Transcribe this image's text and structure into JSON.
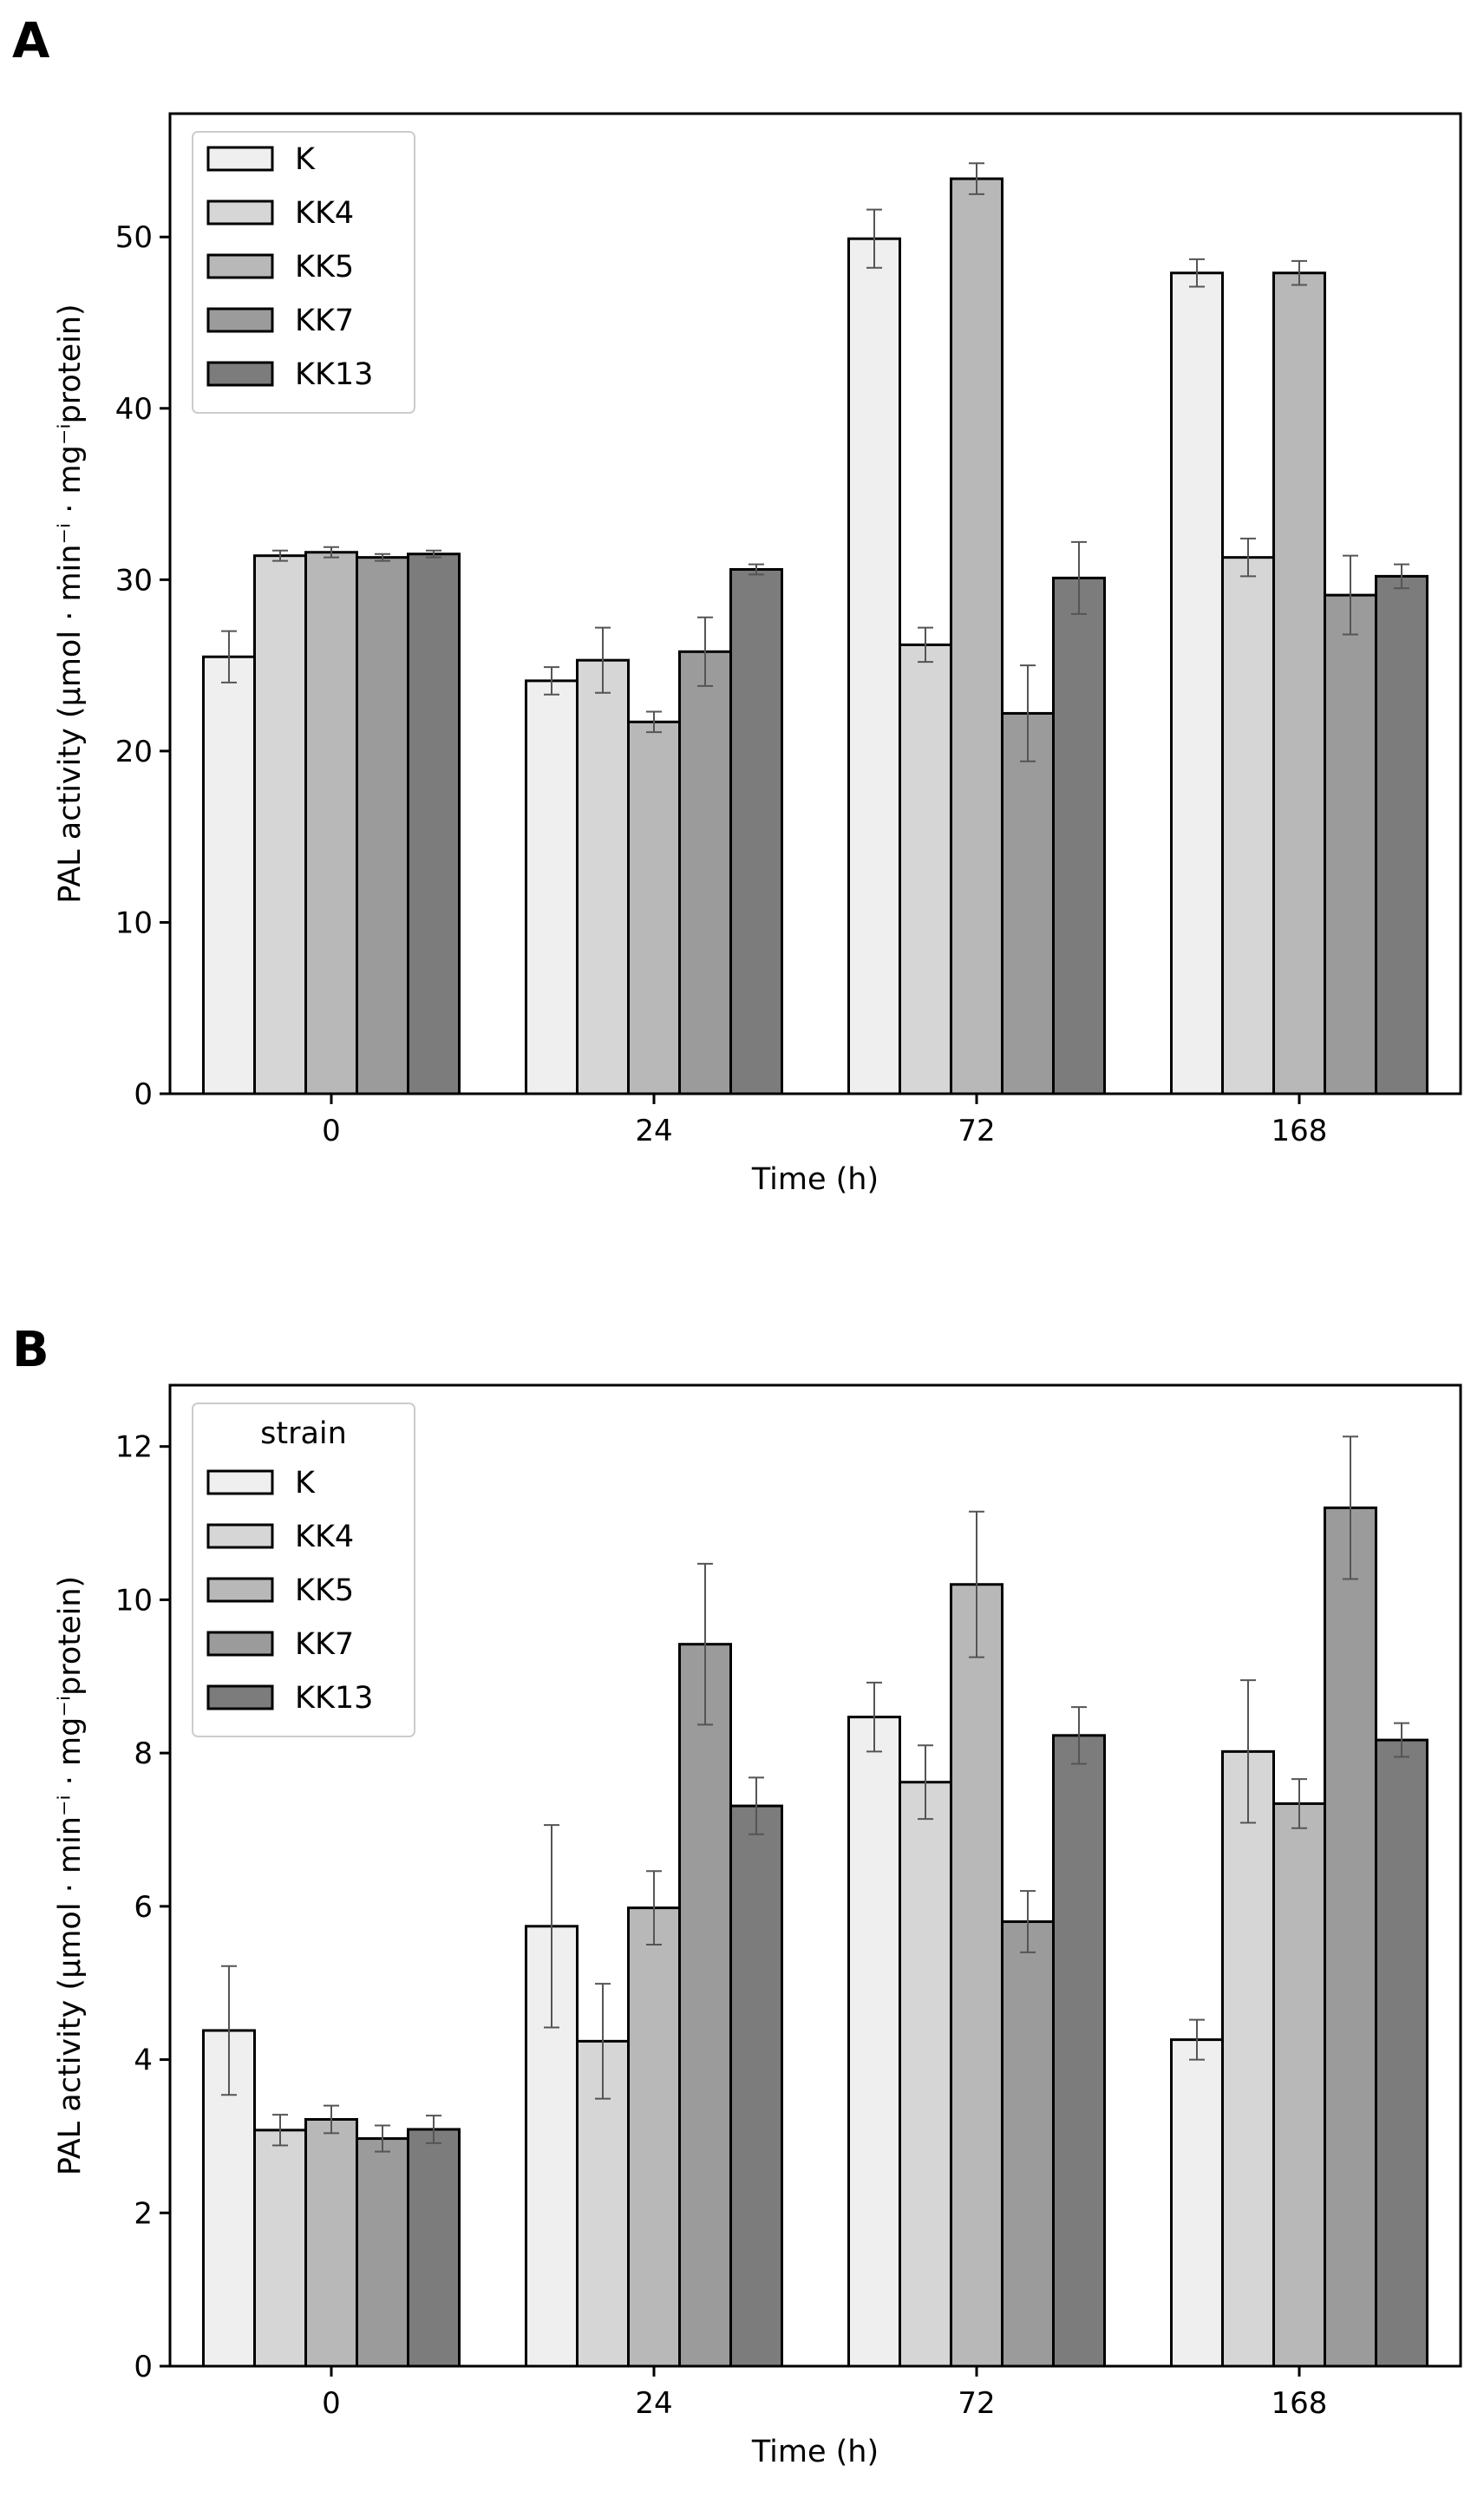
{
  "figure": {
    "panels": [
      "A",
      "B"
    ]
  },
  "chart_data": [
    {
      "panel": "A",
      "type": "bar",
      "categories": [
        "0",
        "24",
        "72",
        "168"
      ],
      "xlabel": "Time (h)",
      "ylabel": "PAL activity (μmol · min⁻ⁱ · mg⁻ⁱprotein)",
      "ylim": [
        0,
        57.2
      ],
      "yticks": [
        0,
        10,
        20,
        30,
        40,
        50
      ],
      "grid": false,
      "legend": {
        "title": "",
        "position": "top-left"
      },
      "series": [
        {
          "name": "K",
          "color": "#efefef",
          "values": [
            25.5,
            24.1,
            49.9,
            47.9
          ],
          "errors": [
            1.5,
            0.8,
            1.7,
            0.8
          ]
        },
        {
          "name": "KK4",
          "color": "#d6d6d6",
          "values": [
            31.4,
            25.3,
            26.2,
            31.3
          ],
          "errors": [
            0.3,
            1.9,
            1.0,
            1.1
          ]
        },
        {
          "name": "KK5",
          "color": "#b8b8b8",
          "values": [
            31.6,
            21.7,
            53.4,
            47.9
          ],
          "errors": [
            0.3,
            0.6,
            0.9,
            0.7
          ]
        },
        {
          "name": "KK7",
          "color": "#9b9b9b",
          "values": [
            31.3,
            25.8,
            22.2,
            29.1
          ],
          "errors": [
            0.2,
            2.0,
            2.8,
            2.3
          ]
        },
        {
          "name": "KK13",
          "color": "#7c7c7c",
          "values": [
            31.5,
            30.6,
            30.1,
            30.2
          ],
          "errors": [
            0.2,
            0.3,
            2.1,
            0.7
          ]
        }
      ]
    },
    {
      "panel": "B",
      "type": "bar",
      "categories": [
        "0",
        "24",
        "72",
        "168"
      ],
      "xlabel": "Time (h)",
      "ylabel": "PAL activity (μmol · min⁻ⁱ · mg⁻ⁱprotein)",
      "ylim": [
        0,
        12.8
      ],
      "yticks": [
        0,
        2,
        4,
        6,
        8,
        10,
        12
      ],
      "grid": false,
      "legend": {
        "title": "strain",
        "position": "top-left"
      },
      "series": [
        {
          "name": "K",
          "color": "#efefef",
          "values": [
            4.38,
            5.74,
            8.47,
            4.26
          ],
          "errors": [
            0.84,
            1.32,
            0.45,
            0.26
          ]
        },
        {
          "name": "KK4",
          "color": "#d6d6d6",
          "values": [
            3.08,
            4.24,
            7.62,
            8.02
          ],
          "errors": [
            0.2,
            0.75,
            0.48,
            0.93
          ]
        },
        {
          "name": "KK5",
          "color": "#b8b8b8",
          "values": [
            3.22,
            5.98,
            10.2,
            7.34
          ],
          "errors": [
            0.18,
            0.48,
            0.95,
            0.32
          ]
        },
        {
          "name": "KK7",
          "color": "#9b9b9b",
          "values": [
            2.97,
            9.42,
            5.8,
            11.2
          ],
          "errors": [
            0.17,
            1.05,
            0.4,
            0.93
          ]
        },
        {
          "name": "KK13",
          "color": "#7c7c7c",
          "values": [
            3.09,
            7.31,
            8.23,
            8.17
          ],
          "errors": [
            0.18,
            0.37,
            0.37,
            0.22
          ]
        }
      ]
    }
  ]
}
